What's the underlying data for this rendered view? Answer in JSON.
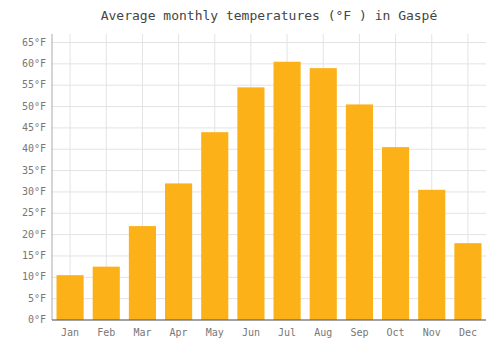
{
  "chart_data": {
    "type": "bar",
    "title": "Average monthly temperatures (°F ) in Gaspé",
    "categories": [
      "Jan",
      "Feb",
      "Mar",
      "Apr",
      "May",
      "Jun",
      "Jul",
      "Aug",
      "Sep",
      "Oct",
      "Nov",
      "Dec"
    ],
    "values": [
      10.5,
      12.5,
      22.0,
      32.0,
      44.0,
      54.5,
      60.5,
      59.0,
      50.5,
      40.5,
      30.5,
      18.0
    ],
    "color": "#FBB117",
    "ylim": [
      0,
      67
    ],
    "yticks": [
      {
        "value": 0,
        "label": "0°F"
      },
      {
        "value": 5,
        "label": "5°F"
      },
      {
        "value": 10,
        "label": "10°F"
      },
      {
        "value": 15,
        "label": "15°F"
      },
      {
        "value": 20,
        "label": "20°F"
      },
      {
        "value": 25,
        "label": "25°F"
      },
      {
        "value": 30,
        "label": "30°F"
      },
      {
        "value": 35,
        "label": "35°F"
      },
      {
        "value": 40,
        "label": "40°F"
      },
      {
        "value": 45,
        "label": "45°F"
      },
      {
        "value": 50,
        "label": "50°F"
      },
      {
        "value": 55,
        "label": "55°F"
      },
      {
        "value": 60,
        "label": "60°F"
      },
      {
        "value": 65,
        "label": "65°F"
      }
    ],
    "grid": true
  }
}
